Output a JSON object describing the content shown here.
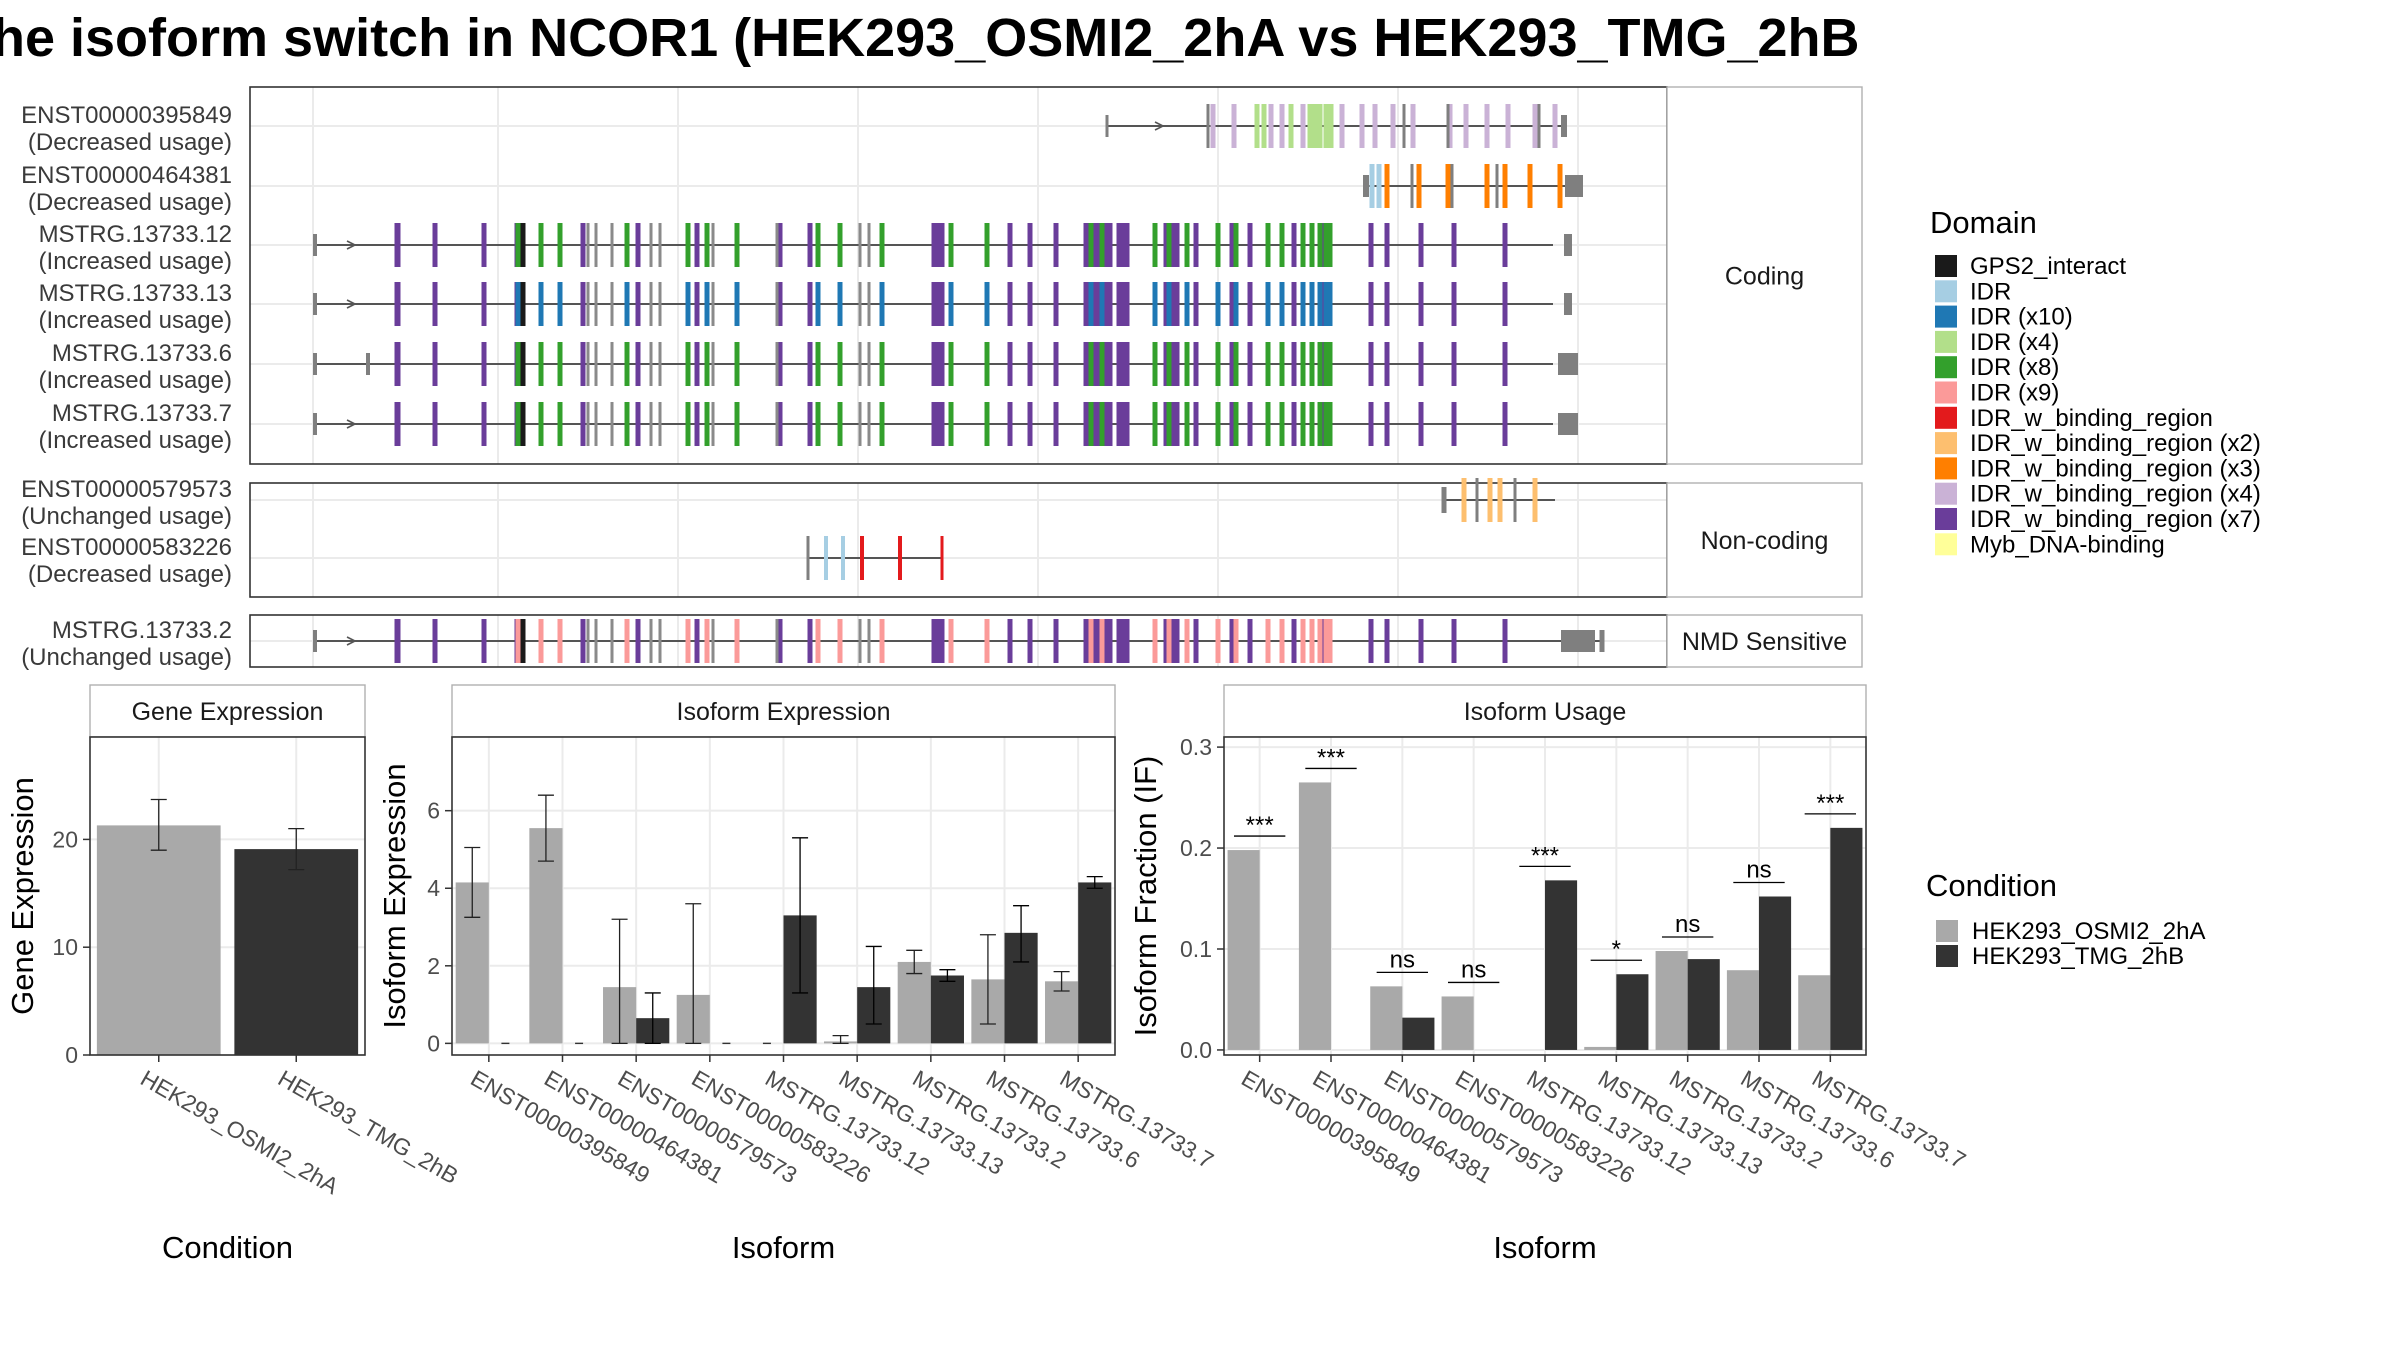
{
  "figure": {
    "title": "he isoform switch in NCOR1 (HEK293_OSMI2_2hA vs HEK293_TMG_2hB",
    "domain_legend_title": "Domain",
    "condition_legend_title": "Condition"
  },
  "chart_data": [
    {
      "type": "isoform-structure",
      "panels": [
        {
          "strip": "Coding",
          "isoforms": [
            {
              "id": "ENST00000395849",
              "usage": "(Decreased usage)"
            },
            {
              "id": "ENST00000464381",
              "usage": "(Decreased usage)"
            },
            {
              "id": "MSTRG.13733.12",
              "usage": "(Increased usage)"
            },
            {
              "id": "MSTRG.13733.13",
              "usage": "(Increased usage)"
            },
            {
              "id": "MSTRG.13733.6",
              "usage": "(Increased usage)"
            },
            {
              "id": "MSTRG.13733.7",
              "usage": "(Increased usage)"
            }
          ]
        },
        {
          "strip": "Non-coding",
          "isoforms": [
            {
              "id": "ENST00000579573",
              "usage": "(Unchanged usage)"
            },
            {
              "id": "ENST00000583226",
              "usage": "(Decreased usage)"
            }
          ]
        },
        {
          "strip": "NMD Sensitive",
          "isoforms": [
            {
              "id": "MSTRG.13733.2",
              "usage": "(Unchanged usage)"
            }
          ]
        }
      ],
      "domains": [
        {
          "name": "GPS2_interact",
          "color": "#1a1a1a"
        },
        {
          "name": "IDR",
          "color": "#a6cee3"
        },
        {
          "name": "IDR (x10)",
          "color": "#1f78b4"
        },
        {
          "name": "IDR (x4)",
          "color": "#b2df8a"
        },
        {
          "name": "IDR (x8)",
          "color": "#33a02c"
        },
        {
          "name": "IDR (x9)",
          "color": "#fb9a99"
        },
        {
          "name": "IDR_w_binding_region",
          "color": "#e31a1c"
        },
        {
          "name": "IDR_w_binding_region (x2)",
          "color": "#fdbf6f"
        },
        {
          "name": "IDR_w_binding_region (x3)",
          "color": "#ff7f00"
        },
        {
          "name": "IDR_w_binding_region (x4)",
          "color": "#cab2d6"
        },
        {
          "name": "IDR_w_binding_region (x7)",
          "color": "#6a3d9a"
        },
        {
          "name": "Myb_DNA-binding",
          "color": "#ffff99"
        }
      ]
    },
    {
      "type": "bar",
      "strip": "Gene Expression",
      "xlabel": "Condition",
      "ylabel": "Gene Expression",
      "categories": [
        "HEK293_OSMI2_2hA",
        "HEK293_TMG_2hB"
      ],
      "values": [
        21.3,
        19.1
      ],
      "errors": [
        [
          19.0,
          23.7
        ],
        [
          17.2,
          21.0
        ]
      ],
      "ylim": [
        0,
        29.5
      ],
      "yticks": [
        0,
        10,
        20
      ]
    },
    {
      "type": "bar",
      "strip": "Isoform Expression",
      "xlabel": "Isoform",
      "ylabel": "Isoform Expression",
      "categories": [
        "ENST00000395849",
        "ENST00000464381",
        "ENST00000579573",
        "ENST00000583226",
        "MSTRG.13733.12",
        "MSTRG.13733.13",
        "MSTRG.13733.2",
        "MSTRG.13733.6",
        "MSTRG.13733.7"
      ],
      "series": [
        {
          "name": "HEK293_OSMI2_2hA",
          "color": "#a9a9a9",
          "values": [
            4.15,
            5.55,
            1.45,
            1.25,
            0.0,
            0.05,
            2.1,
            1.65,
            1.6
          ],
          "errors": [
            [
              3.25,
              5.05
            ],
            [
              4.7,
              6.4
            ],
            [
              0.0,
              3.2
            ],
            [
              0.0,
              3.6
            ],
            [
              0.0,
              0.0
            ],
            [
              0.0,
              0.2
            ],
            [
              1.8,
              2.4
            ],
            [
              0.5,
              2.8
            ],
            [
              1.35,
              1.85
            ]
          ]
        },
        {
          "name": "HEK293_TMG_2hB",
          "color": "#333333",
          "values": [
            0.0,
            0.0,
            0.65,
            0.0,
            3.3,
            1.45,
            1.75,
            2.85,
            4.15
          ],
          "errors": [
            [
              0.0,
              0.0
            ],
            [
              0.0,
              0.0
            ],
            [
              0.0,
              1.3
            ],
            [
              0.0,
              0.0
            ],
            [
              1.3,
              5.3
            ],
            [
              0.5,
              2.5
            ],
            [
              1.6,
              1.9
            ],
            [
              2.1,
              3.55
            ],
            [
              4.0,
              4.3
            ]
          ]
        }
      ],
      "ylim": [
        -0.3,
        7.9
      ],
      "yticks": [
        0,
        2,
        4,
        6
      ]
    },
    {
      "type": "bar",
      "strip": "Isoform Usage",
      "xlabel": "Isoform",
      "ylabel": "Isoform Fraction (IF)",
      "categories": [
        "ENST00000395849",
        "ENST00000464381",
        "ENST00000579573",
        "ENST00000583226",
        "MSTRG.13733.12",
        "MSTRG.13733.13",
        "MSTRG.13733.2",
        "MSTRG.13733.6",
        "MSTRG.13733.7"
      ],
      "series": [
        {
          "name": "HEK293_OSMI2_2hA",
          "color": "#a9a9a9",
          "values": [
            0.198,
            0.265,
            0.063,
            0.053,
            0.0,
            0.003,
            0.098,
            0.079,
            0.074
          ]
        },
        {
          "name": "HEK293_TMG_2hB",
          "color": "#333333",
          "values": [
            0.0,
            0.0,
            0.032,
            0.0,
            0.168,
            0.075,
            0.09,
            0.152,
            0.22
          ]
        }
      ],
      "significance": [
        "***",
        "***",
        "ns",
        "ns",
        "***",
        "*",
        "ns",
        "ns",
        "***"
      ],
      "ylim": [
        -0.005,
        0.31
      ],
      "yticks": [
        0.0,
        0.1,
        0.2,
        0.3
      ],
      "ytick_labels": [
        "0.0",
        "0.1",
        "0.2",
        "0.3"
      ]
    }
  ]
}
